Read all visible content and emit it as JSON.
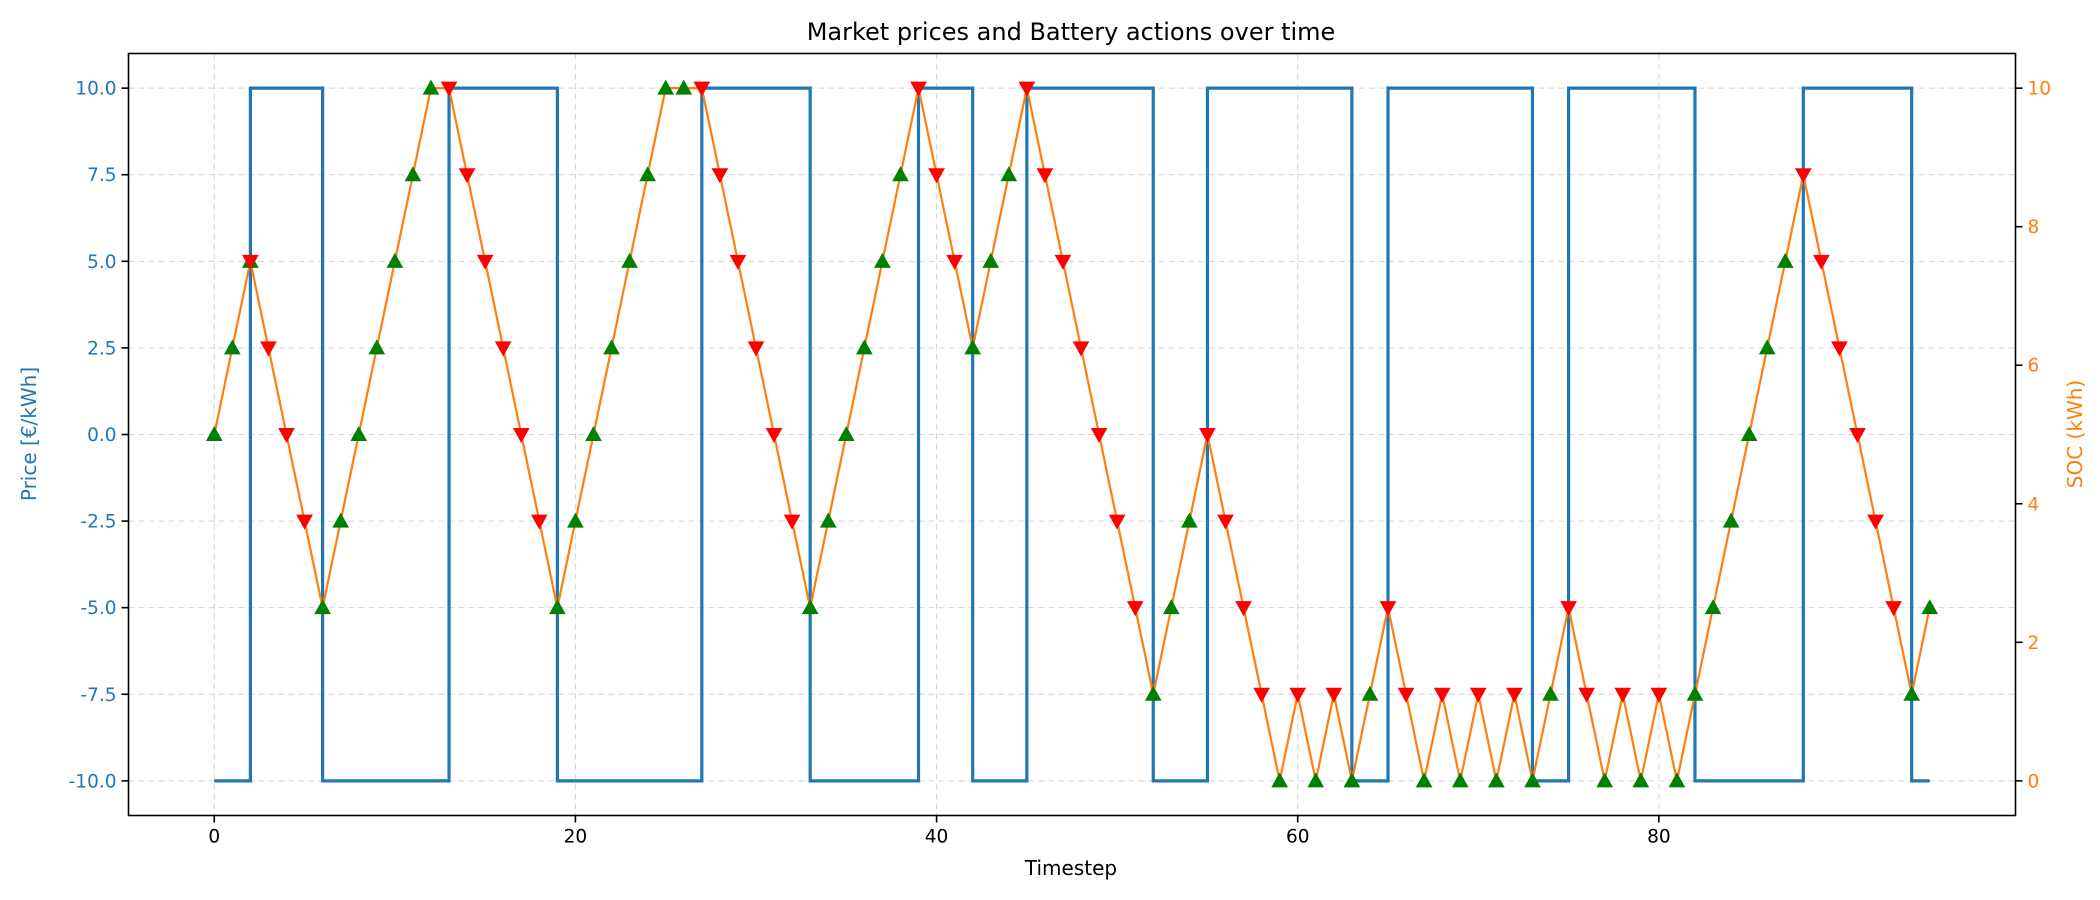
{
  "chart_data": {
    "type": "line",
    "title": "Market prices and Battery actions over time",
    "xlabel": "Timestep",
    "ylabel_left": "Price [€/kWh]",
    "ylabel_right": "SOC (kWh)",
    "xlim": [
      -4.75,
      99.75
    ],
    "ylim_left": [
      -11,
      11
    ],
    "ylim_right": [
      -0.5,
      10.5
    ],
    "x_ticks": [
      0,
      20,
      40,
      60,
      80
    ],
    "y_ticks_left": [
      -10.0,
      -7.5,
      -5.0,
      -2.5,
      0.0,
      2.5,
      5.0,
      7.5,
      10.0
    ],
    "y_ticks_right": [
      0,
      2,
      4,
      6,
      8,
      10
    ],
    "grid": true,
    "colors": {
      "price": "#1f77b4",
      "soc": "#ff7f0e",
      "charge": "#008000",
      "discharge": "#ff0000"
    },
    "price_series": {
      "step": "post",
      "x": [
        0,
        2,
        6,
        13,
        19,
        27,
        33,
        39,
        42,
        45,
        52,
        55,
        63,
        65,
        73,
        75,
        82,
        88,
        94,
        95
      ],
      "values": [
        -10,
        10,
        -10,
        10,
        -10,
        10,
        -10,
        10,
        -10,
        10,
        -10,
        10,
        -10,
        10,
        -10,
        10,
        -10,
        10,
        -10,
        -10
      ]
    },
    "soc_series": {
      "x": [
        0,
        1,
        2,
        3,
        4,
        5,
        6,
        7,
        8,
        9,
        10,
        11,
        12,
        13,
        14,
        15,
        16,
        17,
        18,
        19,
        20,
        21,
        22,
        23,
        24,
        25,
        26,
        27,
        28,
        29,
        30,
        31,
        32,
        33,
        34,
        35,
        36,
        37,
        38,
        39,
        40,
        41,
        42,
        43,
        44,
        45,
        46,
        47,
        48,
        49,
        50,
        51,
        52,
        53,
        54,
        55,
        56,
        57,
        58,
        59,
        60,
        61,
        62,
        63,
        64,
        65,
        66,
        67,
        68,
        69,
        70,
        71,
        72,
        73,
        74,
        75,
        76,
        77,
        78,
        79,
        80,
        81,
        82,
        83,
        84,
        85,
        86,
        87,
        88,
        89,
        90,
        91,
        92,
        93,
        94,
        95
      ],
      "values": [
        5,
        6.25,
        7.5,
        6.25,
        5,
        3.75,
        2.5,
        3.75,
        5,
        6.25,
        7.5,
        8.75,
        10,
        10,
        8.75,
        7.5,
        6.25,
        5,
        3.75,
        2.5,
        3.75,
        5,
        6.25,
        7.5,
        8.75,
        10,
        10,
        10,
        8.75,
        7.5,
        6.25,
        5,
        3.75,
        2.5,
        3.75,
        5,
        6.25,
        7.5,
        8.75,
        10,
        8.75,
        7.5,
        6.25,
        7.5,
        8.75,
        10,
        8.75,
        7.5,
        6.25,
        5,
        3.75,
        2.5,
        1.25,
        2.5,
        3.75,
        5,
        3.75,
        2.5,
        1.25,
        0,
        1.25,
        0,
        1.25,
        0,
        1.25,
        2.5,
        1.25,
        0,
        1.25,
        0,
        1.25,
        0,
        1.25,
        0,
        1.25,
        2.5,
        1.25,
        0,
        1.25,
        0,
        1.25,
        0,
        1.25,
        2.5,
        3.75,
        5,
        6.25,
        7.5,
        8.75,
        7.5,
        6.25,
        5,
        3.75,
        2.5,
        1.25,
        2.5
      ]
    },
    "charge_markers": [
      0,
      1,
      2,
      6,
      7,
      8,
      9,
      10,
      11,
      12,
      19,
      20,
      21,
      22,
      23,
      24,
      25,
      26,
      33,
      34,
      35,
      36,
      37,
      38,
      42,
      43,
      44,
      52,
      53,
      54,
      59,
      61,
      63,
      64,
      67,
      69,
      71,
      73,
      74,
      77,
      79,
      81,
      82,
      83,
      84,
      85,
      86,
      87,
      94,
      95
    ],
    "discharge_markers": [
      2,
      3,
      4,
      5,
      13,
      14,
      15,
      16,
      17,
      18,
      27,
      28,
      29,
      30,
      31,
      32,
      39,
      40,
      41,
      45,
      46,
      47,
      48,
      49,
      50,
      51,
      55,
      56,
      57,
      58,
      60,
      62,
      65,
      66,
      68,
      70,
      72,
      75,
      76,
      78,
      80,
      88,
      89,
      90,
      91,
      92,
      93
    ]
  }
}
